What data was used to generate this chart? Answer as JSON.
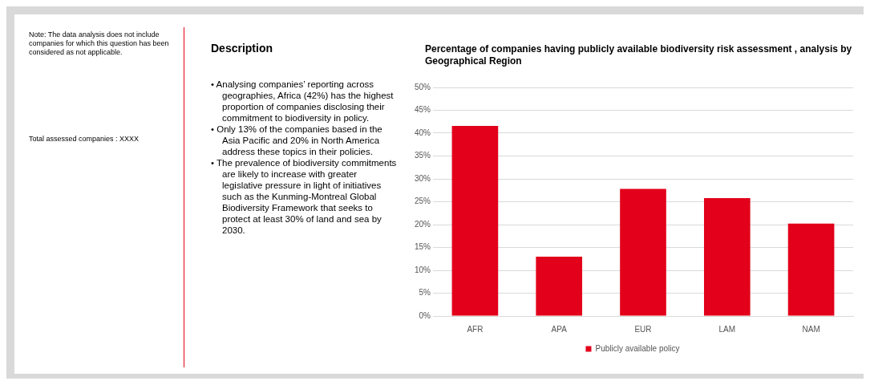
{
  "chart_data": {
    "type": "bar",
    "title": "Percentage of companies having publicly available biodiversity risk assessment , analysis by Geographical Region",
    "categories": [
      "AFR",
      "APA",
      "EUR",
      "LAM",
      "NAM"
    ],
    "series": [
      {
        "name": "Publicly available policy",
        "color": "#e2001a",
        "values": [
          41.6,
          13,
          27.8,
          25.8,
          20.2
        ]
      }
    ],
    "ylim": [
      0,
      50
    ],
    "yticks": [
      {
        "value": 0,
        "label": "0%"
      },
      {
        "value": 5,
        "label": "5%"
      },
      {
        "value": 10,
        "label": "10%"
      },
      {
        "value": 15,
        "label": "15%"
      },
      {
        "value": 20,
        "label": "20%"
      },
      {
        "value": 25,
        "label": "25%"
      },
      {
        "value": 30,
        "label": "30%"
      },
      {
        "value": 35,
        "label": "35%"
      },
      {
        "value": 40,
        "label": "40%"
      },
      {
        "value": 45,
        "label": "45%"
      },
      {
        "value": 50,
        "label": "50%"
      }
    ],
    "grid": "y",
    "legend": "bottom",
    "annotations": [
      "Note: The data analysis does not include companies for which this question has been considered as not applicable.",
      "Total assessed companies : XXXX",
      "Description",
      "• Analysing companies’ reporting across geographies, Africa (42%) has the highest proportion of companies disclosing their commitment to biodiversity in policy.",
      "• Only 13% of the companies based in the Asia Pacific and 20% in North America address these topics in their policies.",
      "• The prevalence of biodiversity commitments are likely to increase with greater legislative pressure in light of initiatives such as the Kunming-Montreal Global Biodiversity Framework that seeks to protect at least 30% of land and sea by 2030."
    ]
  }
}
